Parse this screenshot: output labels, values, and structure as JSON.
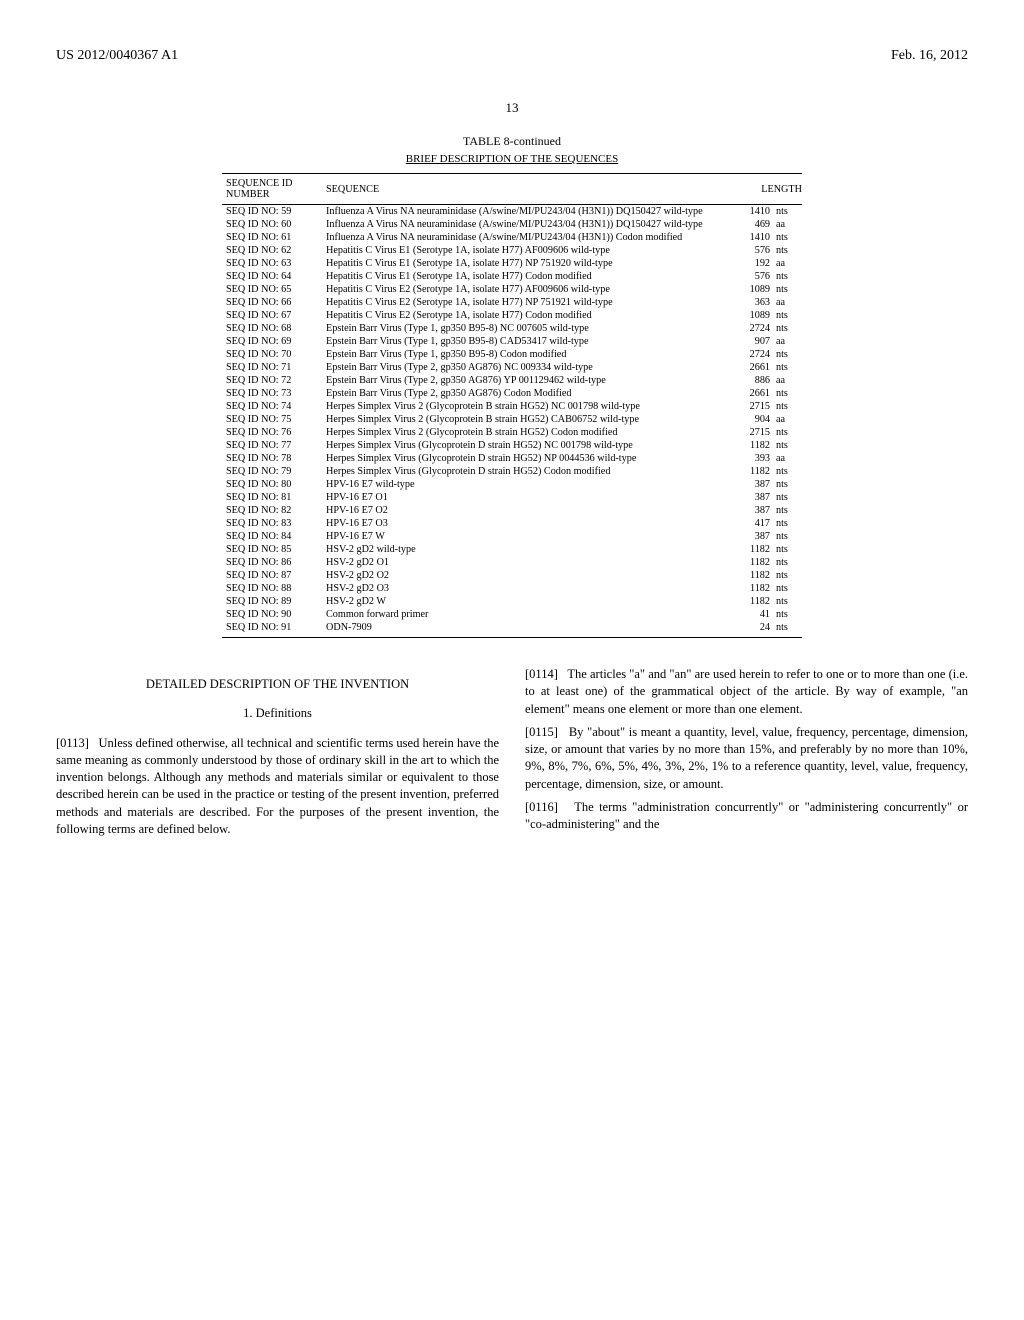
{
  "header": {
    "pub_number": "US 2012/0040367 A1",
    "pub_date": "Feb. 16, 2012"
  },
  "page_number": "13",
  "table": {
    "title": "TABLE 8-continued",
    "subtitle": "BRIEF DESCRIPTION OF THE SEQUENCES",
    "columns": {
      "id": "SEQUENCE ID NUMBER",
      "sequence": "SEQUENCE",
      "length": "LENGTH"
    },
    "rows": [
      {
        "id": "SEQ ID NO: 59",
        "desc": "Influenza A Virus NA neuraminidase (A/swine/MI/PU243/04 (H3N1)) DQ150427 wild-type",
        "len": "1410",
        "unit": "nts"
      },
      {
        "id": "SEQ ID NO: 60",
        "desc": "Influenza A Virus NA neuraminidase (A/swine/MI/PU243/04 (H3N1)) DQ150427 wild-type",
        "len": "469",
        "unit": "aa"
      },
      {
        "id": "SEQ ID NO: 61",
        "desc": "Influenza A Virus NA neuraminidase (A/swine/MI/PU243/04 (H3N1)) Codon modified",
        "len": "1410",
        "unit": "nts"
      },
      {
        "id": "SEQ ID NO: 62",
        "desc": "Hepatitis C Virus E1 (Serotype 1A, isolate H77) AF009606 wild-type",
        "len": "576",
        "unit": "nts"
      },
      {
        "id": "SEQ ID NO: 63",
        "desc": "Hepatitis C Virus E1 (Serotype 1A, isolate H77) NP 751920 wild-type",
        "len": "192",
        "unit": "aa"
      },
      {
        "id": "SEQ ID NO: 64",
        "desc": "Hepatitis C Virus E1 (Serotype 1A, isolate H77) Codon modified",
        "len": "576",
        "unit": "nts"
      },
      {
        "id": "SEQ ID NO: 65",
        "desc": "Hepatitis C Virus E2 (Serotype 1A, isolate H77) AF009606 wild-type",
        "len": "1089",
        "unit": "nts"
      },
      {
        "id": "SEQ ID NO: 66",
        "desc": "Hepatitis C Virus E2 (Serotype 1A, isolate H77) NP 751921 wild-type",
        "len": "363",
        "unit": "aa"
      },
      {
        "id": "SEQ ID NO: 67",
        "desc": "Hepatitis C Virus E2 (Serotype 1A, isolate H77) Codon modified",
        "len": "1089",
        "unit": "nts"
      },
      {
        "id": "SEQ ID NO: 68",
        "desc": "Epstein Barr Virus (Type 1, gp350 B95-8) NC 007605 wild-type",
        "len": "2724",
        "unit": "nts"
      },
      {
        "id": "SEQ ID NO: 69",
        "desc": "Epstein Barr Virus (Type 1, gp350 B95-8) CAD53417 wild-type",
        "len": "907",
        "unit": "aa"
      },
      {
        "id": "SEQ ID NO: 70",
        "desc": "Epstein Barr Virus (Type 1, gp350 B95-8) Codon modified",
        "len": "2724",
        "unit": "nts"
      },
      {
        "id": "SEQ ID NO: 71",
        "desc": "Epstein Barr Virus (Type 2, gp350 AG876) NC 009334 wild-type",
        "len": "2661",
        "unit": "nts"
      },
      {
        "id": "SEQ ID NO: 72",
        "desc": "Epstein Barr Virus (Type 2, gp350 AG876) YP 001129462 wild-type",
        "len": "886",
        "unit": "aa"
      },
      {
        "id": "SEQ ID NO: 73",
        "desc": "Epstein Barr Virus (Type 2, gp350 AG876) Codon Modified",
        "len": "2661",
        "unit": "nts"
      },
      {
        "id": "SEQ ID NO: 74",
        "desc": "Herpes Simplex Virus 2 (Glycoprotein B strain HG52) NC 001798 wild-type",
        "len": "2715",
        "unit": "nts"
      },
      {
        "id": "SEQ ID NO: 75",
        "desc": "Herpes Simplex Virus 2 (Glycoprotein B strain HG52) CAB06752 wild-type",
        "len": "904",
        "unit": "aa"
      },
      {
        "id": "SEQ ID NO: 76",
        "desc": "Herpes Simplex Virus 2 (Glycoprotein B strain HG52) Codon modified",
        "len": "2715",
        "unit": "nts"
      },
      {
        "id": "SEQ ID NO: 77",
        "desc": "Herpes Simplex Virus (Glycoprotein D strain HG52) NC 001798 wild-type",
        "len": "1182",
        "unit": "nts"
      },
      {
        "id": "SEQ ID NO: 78",
        "desc": "Herpes Simplex Virus (Glycoprotein D strain HG52) NP 0044536 wild-type",
        "len": "393",
        "unit": "aa"
      },
      {
        "id": "SEQ ID NO: 79",
        "desc": "Herpes Simplex Virus (Glycoprotein D strain HG52) Codon modified",
        "len": "1182",
        "unit": "nts"
      },
      {
        "id": "SEQ ID NO: 80",
        "desc": "HPV-16 E7 wild-type",
        "len": "387",
        "unit": "nts"
      },
      {
        "id": "SEQ ID NO: 81",
        "desc": "HPV-16 E7 O1",
        "len": "387",
        "unit": "nts"
      },
      {
        "id": "SEQ ID NO: 82",
        "desc": "HPV-16 E7 O2",
        "len": "387",
        "unit": "nts"
      },
      {
        "id": "SEQ ID NO: 83",
        "desc": "HPV-16 E7 O3",
        "len": "417",
        "unit": "nts"
      },
      {
        "id": "SEQ ID NO: 84",
        "desc": "HPV-16 E7 W",
        "len": "387",
        "unit": "nts"
      },
      {
        "id": "SEQ ID NO: 85",
        "desc": "HSV-2 gD2 wild-type",
        "len": "1182",
        "unit": "nts"
      },
      {
        "id": "SEQ ID NO: 86",
        "desc": "HSV-2 gD2 O1",
        "len": "1182",
        "unit": "nts"
      },
      {
        "id": "SEQ ID NO: 87",
        "desc": "HSV-2 gD2 O2",
        "len": "1182",
        "unit": "nts"
      },
      {
        "id": "SEQ ID NO: 88",
        "desc": "HSV-2 gD2 O3",
        "len": "1182",
        "unit": "nts"
      },
      {
        "id": "SEQ ID NO: 89",
        "desc": "HSV-2 gD2 W",
        "len": "1182",
        "unit": "nts"
      },
      {
        "id": "SEQ ID NO: 90",
        "desc": "Common forward primer",
        "len": "41",
        "unit": "nts"
      },
      {
        "id": "SEQ ID NO: 91",
        "desc": "ODN-7909",
        "len": "24",
        "unit": "nts"
      }
    ]
  },
  "body": {
    "heading_main": "DETAILED DESCRIPTION OF THE INVENTION",
    "heading_sub": "1. Definitions",
    "paras": {
      "p0113_num": "[0113]",
      "p0113": "Unless defined otherwise, all technical and scientific terms used herein have the same meaning as commonly understood by those of ordinary skill in the art to which the invention belongs. Although any methods and materials similar or equivalent to those described herein can be used in the practice or testing of the present invention, preferred methods and materials are described. For the purposes of the present invention, the following terms are defined below.",
      "p0114_num": "[0114]",
      "p0114": "The articles \"a\" and \"an\" are used herein to refer to one or to more than one (i.e. to at least one) of the grammatical object of the article. By way of example, \"an element\" means one element or more than one element.",
      "p0115_num": "[0115]",
      "p0115": "By \"about\" is meant a quantity, level, value, frequency, percentage, dimension, size, or amount that varies by no more than 15%, and preferably by no more than 10%, 9%, 8%, 7%, 6%, 5%, 4%, 3%, 2%, 1% to a reference quantity, level, value, frequency, percentage, dimension, size, or amount.",
      "p0116_num": "[0116]",
      "p0116": "The terms \"administration concurrently\" or \"administering concurrently\" or \"co-administering\" and the"
    }
  }
}
